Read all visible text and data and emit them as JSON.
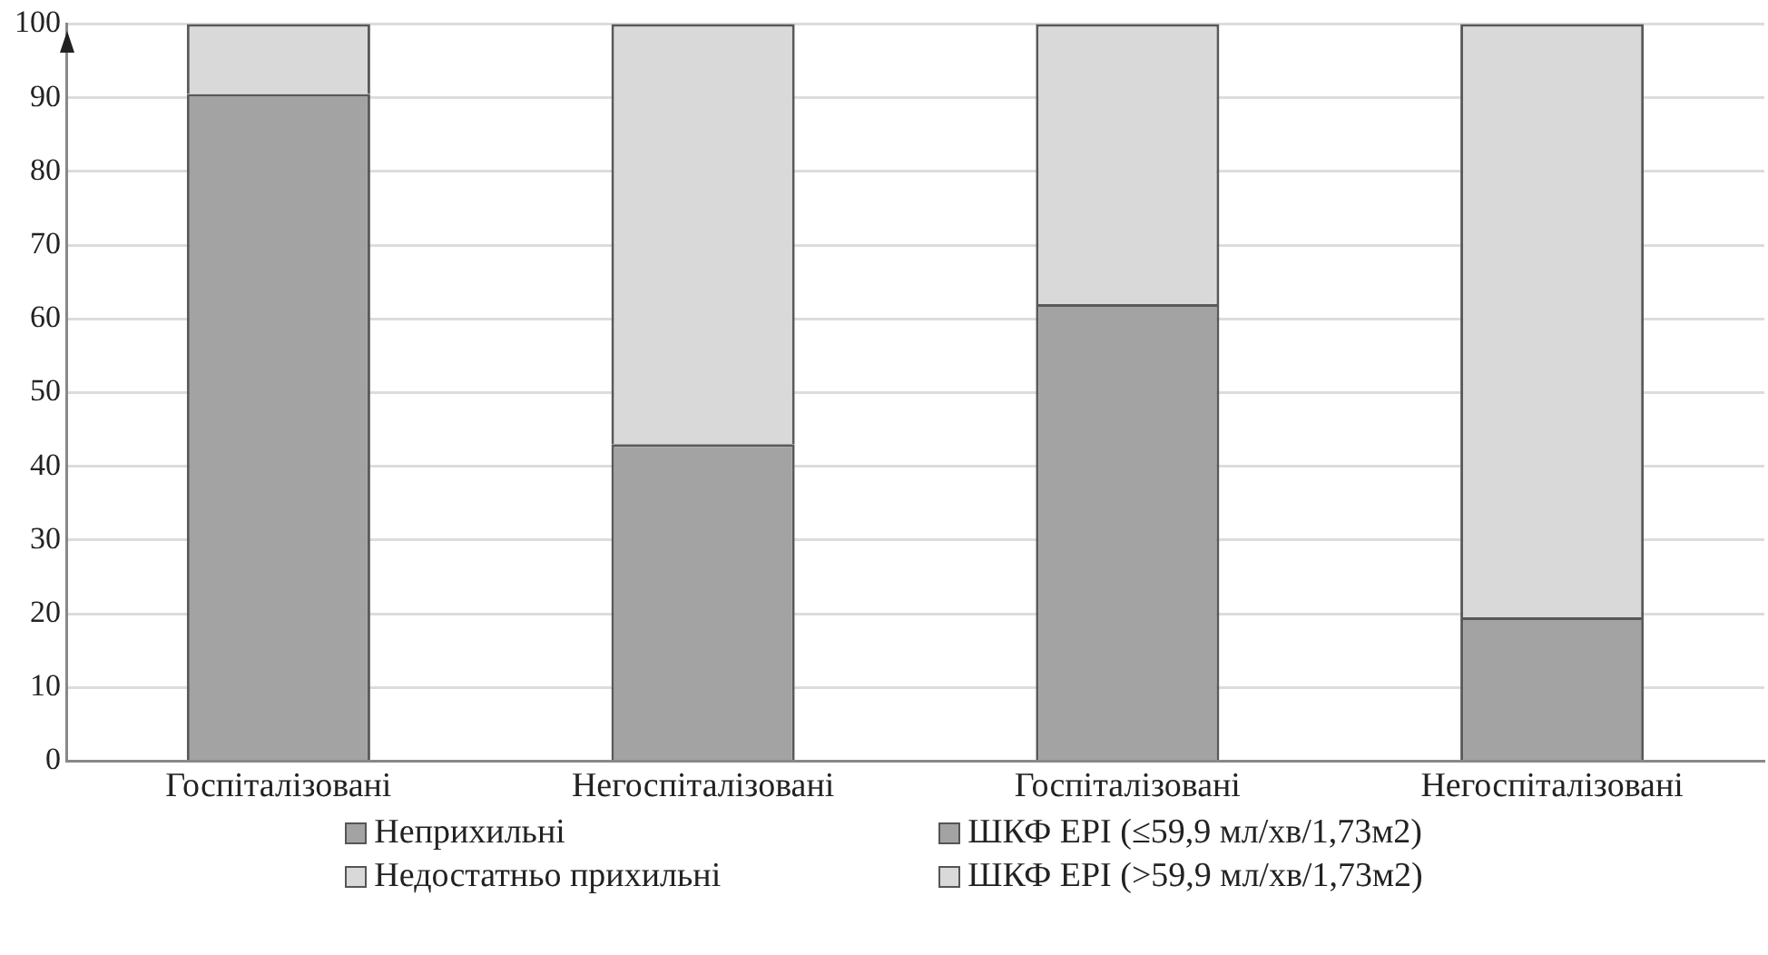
{
  "chart_data": {
    "type": "bar",
    "stacked": true,
    "categories": [
      "Госпіталізовані",
      "Негоспіталізовані",
      "Госпіталізовані",
      "Негоспіталізовані"
    ],
    "series": [
      {
        "name": "Неприхильні",
        "color": "#a3a3a3",
        "values": [
          90.5,
          43,
          null,
          null
        ]
      },
      {
        "name": "Недостатньо прихильні",
        "color": "#d9d9d9",
        "values": [
          9.5,
          57,
          null,
          null
        ]
      },
      {
        "name": "ШКФ EPI (≤59,9 мл/хв/1,73м2)",
        "color": "#a3a3a3",
        "values": [
          null,
          null,
          62,
          19.5
        ]
      },
      {
        "name": "ШКФ EPI (>59,9 мл/хв/1,73м2)",
        "color": "#d9d9d9",
        "values": [
          null,
          null,
          38,
          80.5
        ]
      }
    ],
    "ylim": [
      0,
      100
    ],
    "yticks": [
      0,
      10,
      20,
      30,
      40,
      50,
      60,
      70,
      80,
      90,
      100
    ],
    "grid": "y",
    "legend": "bottom"
  }
}
